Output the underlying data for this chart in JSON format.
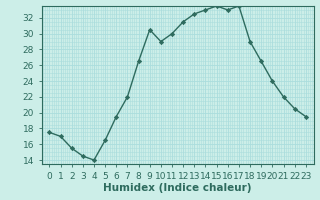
{
  "x": [
    0,
    1,
    2,
    3,
    4,
    5,
    6,
    7,
    8,
    9,
    10,
    11,
    12,
    13,
    14,
    15,
    16,
    17,
    18,
    19,
    20,
    21,
    22,
    23
  ],
  "y": [
    17.5,
    17.0,
    15.5,
    14.5,
    14.0,
    16.5,
    19.5,
    22.0,
    26.5,
    30.5,
    29.0,
    30.0,
    31.5,
    32.5,
    33.0,
    33.5,
    33.0,
    33.5,
    29.0,
    26.5,
    24.0,
    22.0,
    20.5,
    19.5
  ],
  "line_color": "#2e6b5e",
  "marker": "D",
  "marker_size": 2.2,
  "bg_color": "#cceee8",
  "grid_color": "#aadddd",
  "xlabel": "Humidex (Indice chaleur)",
  "ylim": [
    13.5,
    33.5
  ],
  "yticks": [
    14,
    16,
    18,
    20,
    22,
    24,
    26,
    28,
    30,
    32
  ],
  "xticks": [
    0,
    1,
    2,
    3,
    4,
    5,
    6,
    7,
    8,
    9,
    10,
    11,
    12,
    13,
    14,
    15,
    16,
    17,
    18,
    19,
    20,
    21,
    22,
    23
  ],
  "xlabel_fontsize": 7.5,
  "tick_fontsize": 6.5,
  "linewidth": 1.0
}
